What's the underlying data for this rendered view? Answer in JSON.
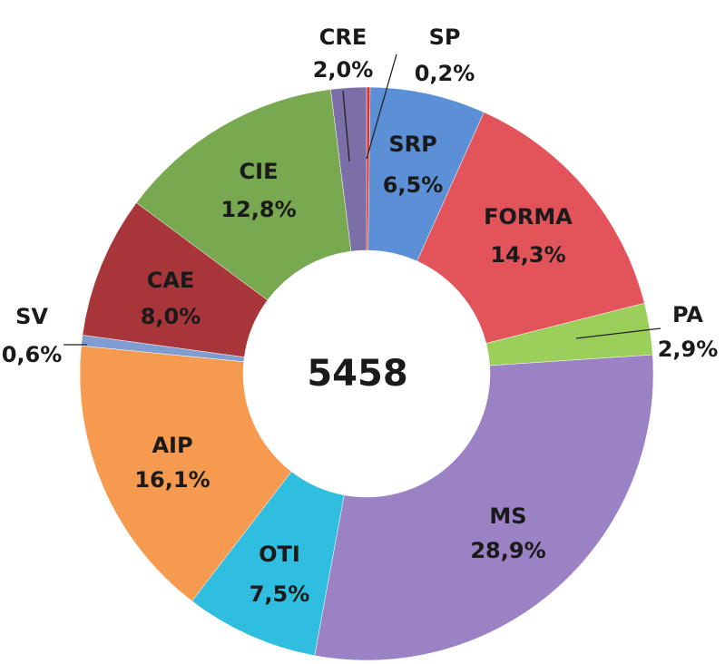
{
  "chart_data": {
    "type": "donut",
    "categories": [
      "SP",
      "SRP",
      "FORMA",
      "PA",
      "MS",
      "OTI",
      "AIP",
      "SV",
      "CAE",
      "CIE",
      "CRE"
    ],
    "values": [
      0.2,
      6.5,
      14.3,
      2.9,
      28.9,
      7.5,
      16.1,
      0.6,
      8.0,
      12.8,
      2.0
    ],
    "value_labels": [
      "0,2%",
      "6,5%",
      "14,3%",
      "2,9%",
      "28,9%",
      "7,5%",
      "16,1%",
      "0,6%",
      "8,0%",
      "12,8%",
      "2,0%"
    ],
    "colors": [
      "#d9302c",
      "#5b8fd6",
      "#e2545a",
      "#9ccf5a",
      "#9a82c4",
      "#2fbde0",
      "#f59a4f",
      "#7f9dd0",
      "#a8353a",
      "#78a850",
      "#7c6ea6"
    ],
    "center_label": "5458"
  }
}
